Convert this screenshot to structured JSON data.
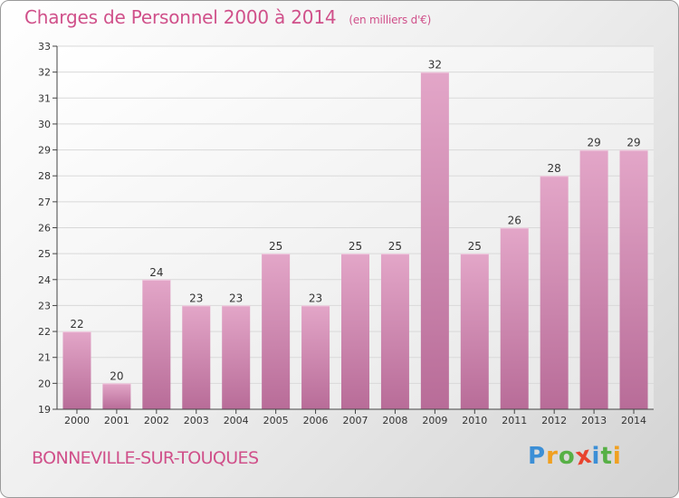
{
  "chart_title": "Charges de Personnel 2000 à 2014",
  "chart_subtitle": "(en milliers d'€)",
  "city": "BONNEVILLE-SUR-TOUQUES",
  "logo": {
    "letters": [
      "P",
      "r",
      "o",
      "x",
      "i",
      "t",
      "i"
    ],
    "colors": [
      "#3c8fd6",
      "#f0a020",
      "#57b046",
      "#e8432e",
      "#3c8fd6",
      "#57b046",
      "#f0a020"
    ]
  },
  "colors": {
    "accent": "#d0508a",
    "bar_top": "#e3a6c8",
    "bar_bottom": "#b86c98",
    "grid": "#d9d9d9",
    "axis": "#444444"
  },
  "chart_data": {
    "type": "bar",
    "categories": [
      "2000",
      "2001",
      "2002",
      "2003",
      "2004",
      "2005",
      "2006",
      "2007",
      "2008",
      "2009",
      "2010",
      "2011",
      "2012",
      "2013",
      "2014"
    ],
    "values": [
      22,
      20,
      24,
      23,
      23,
      25,
      23,
      25,
      25,
      32,
      25,
      26,
      28,
      29,
      29
    ],
    "title": "Charges de Personnel 2000 à 2014",
    "subtitle": "(en milliers d'€)",
    "xlabel": "",
    "ylabel": "",
    "ylim": [
      19,
      33
    ],
    "yticks": [
      19,
      20,
      21,
      22,
      23,
      24,
      25,
      26,
      27,
      28,
      29,
      30,
      31,
      32,
      33
    ],
    "grid": true,
    "data_labels": true
  }
}
